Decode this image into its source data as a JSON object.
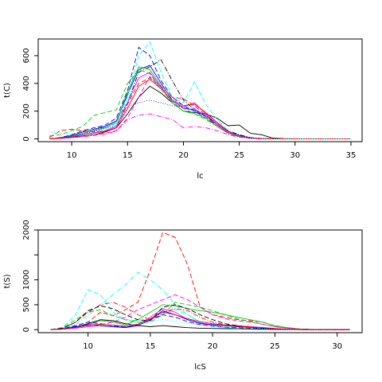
{
  "chart_data": [
    {
      "type": "line",
      "xlabel": "lc",
      "ylabel": "t(C)",
      "xlim": [
        7,
        36
      ],
      "ylim": [
        -20,
        720
      ],
      "xticks": [
        10,
        15,
        20,
        25,
        30,
        35
      ],
      "yticks": [
        0,
        200,
        400,
        600
      ],
      "x": [
        8,
        9,
        10,
        11,
        12,
        13,
        14,
        15,
        16,
        17,
        18,
        19,
        20,
        21,
        22,
        23,
        24,
        25,
        26,
        27,
        28,
        29,
        30,
        31,
        32,
        33,
        34,
        35
      ],
      "series": [
        {
          "color": "#000000",
          "dash": "solid",
          "values": [
            0,
            5,
            10,
            20,
            30,
            50,
            80,
            180,
            300,
            380,
            330,
            260,
            200,
            190,
            180,
            150,
            95,
            100,
            40,
            30,
            5,
            2,
            1,
            0,
            0,
            0,
            0,
            0
          ]
        },
        {
          "color": "#000000",
          "dash": "dashdot",
          "values": [
            0,
            8,
            20,
            40,
            60,
            90,
            130,
            260,
            480,
            520,
            570,
            420,
            280,
            210,
            160,
            110,
            60,
            30,
            10,
            3,
            1,
            0,
            0,
            0,
            0,
            0,
            0,
            0
          ]
        },
        {
          "color": "#0000ff",
          "dash": "dashed",
          "values": [
            0,
            10,
            30,
            60,
            80,
            100,
            150,
            350,
            660,
            600,
            420,
            300,
            240,
            200,
            150,
            100,
            50,
            20,
            5,
            1,
            0,
            0,
            0,
            0,
            0,
            0,
            0,
            0
          ]
        },
        {
          "color": "#0000ff",
          "dash": "solid",
          "values": [
            0,
            8,
            25,
            50,
            70,
            90,
            130,
            320,
            500,
            530,
            400,
            280,
            220,
            210,
            170,
            110,
            55,
            25,
            8,
            2,
            0,
            0,
            0,
            0,
            0,
            0,
            0,
            0
          ]
        },
        {
          "color": "#00ffff",
          "dash": "dashed",
          "values": [
            0,
            5,
            15,
            35,
            60,
            80,
            110,
            300,
            600,
            700,
            480,
            300,
            260,
            410,
            250,
            140,
            60,
            20,
            5,
            1,
            0,
            0,
            0,
            0,
            0,
            0,
            0,
            0
          ]
        },
        {
          "color": "#00cc00",
          "dash": "solid",
          "values": [
            0,
            6,
            20,
            40,
            60,
            80,
            120,
            340,
            520,
            500,
            380,
            260,
            200,
            180,
            150,
            90,
            40,
            15,
            4,
            1,
            0,
            0,
            0,
            0,
            0,
            0,
            0,
            0
          ]
        },
        {
          "color": "#00cc00",
          "dash": "dashed",
          "values": [
            20,
            30,
            60,
            90,
            170,
            190,
            210,
            400,
            500,
            470,
            360,
            260,
            220,
            180,
            140,
            90,
            40,
            15,
            4,
            1,
            0,
            0,
            0,
            0,
            0,
            0,
            0,
            0
          ]
        },
        {
          "color": "#ff0000",
          "dash": "dashed",
          "values": [
            10,
            60,
            70,
            60,
            50,
            60,
            90,
            250,
            400,
            440,
            380,
            300,
            290,
            240,
            170,
            100,
            45,
            18,
            5,
            1,
            0,
            0,
            0,
            0,
            0,
            0,
            0,
            0
          ]
        },
        {
          "color": "#ff00ff",
          "dash": "dashed",
          "values": [
            0,
            4,
            10,
            20,
            30,
            40,
            60,
            150,
            300,
            450,
            360,
            280,
            220,
            220,
            160,
            100,
            45,
            15,
            4,
            1,
            0,
            0,
            0,
            0,
            0,
            0,
            0,
            0
          ]
        },
        {
          "color": "#ff00ff",
          "dash": "dashdot",
          "values": [
            0,
            3,
            8,
            15,
            25,
            35,
            55,
            140,
            170,
            180,
            160,
            140,
            80,
            90,
            80,
            60,
            30,
            12,
            3,
            0,
            0,
            0,
            0,
            0,
            0,
            0,
            0,
            0
          ]
        },
        {
          "color": "#ff00ff",
          "dash": "solid",
          "values": [
            0,
            5,
            15,
            30,
            45,
            60,
            90,
            260,
            440,
            480,
            370,
            270,
            230,
            260,
            180,
            110,
            50,
            18,
            5,
            1,
            0,
            0,
            0,
            0,
            0,
            0,
            0,
            0
          ]
        },
        {
          "color": "#0000ff",
          "dash": "dotted",
          "values": [
            0,
            6,
            18,
            35,
            55,
            75,
            100,
            230,
            260,
            280,
            260,
            240,
            230,
            200,
            160,
            110,
            50,
            18,
            5,
            1,
            0,
            0,
            0,
            0,
            0,
            0,
            0,
            0
          ]
        },
        {
          "color": "#ff0000",
          "dash": "solid",
          "values": [
            0,
            5,
            14,
            28,
            42,
            55,
            80,
            220,
            380,
            430,
            360,
            280,
            240,
            250,
            190,
            120,
            55,
            20,
            5,
            1,
            0,
            0,
            0,
            0,
            0,
            0,
            0,
            0
          ]
        },
        {
          "color": "#00ffff",
          "dash": "dotted",
          "values": [
            50,
            40,
            30,
            30,
            40,
            60,
            100,
            280,
            420,
            460,
            360,
            280,
            240,
            230,
            170,
            110,
            50,
            18,
            5,
            1,
            0,
            0,
            0,
            0,
            0,
            0,
            0,
            0
          ]
        }
      ]
    },
    {
      "type": "line",
      "xlabel": "lcS",
      "ylabel": "t(S)",
      "xlim": [
        6,
        32
      ],
      "ylim": [
        -60,
        2000
      ],
      "xticks": [
        10,
        15,
        20,
        25,
        30
      ],
      "yticks": [
        0,
        500,
        1000,
        1500,
        2000
      ],
      "ytick_labels": [
        "0",
        "500",
        "1000",
        "",
        "2000"
      ],
      "x": [
        7,
        8,
        9,
        10,
        11,
        12,
        13,
        14,
        15,
        16,
        17,
        18,
        19,
        20,
        21,
        22,
        23,
        24,
        25,
        26,
        27,
        28,
        29,
        30,
        31
      ],
      "series": [
        {
          "color": "#ff0000",
          "dash": "dashed",
          "values": [
            0,
            20,
            80,
            150,
            350,
            280,
            400,
            550,
            1200,
            1950,
            1850,
            1300,
            450,
            300,
            250,
            200,
            180,
            150,
            80,
            40,
            15,
            5,
            2,
            1,
            0
          ]
        },
        {
          "color": "#00ffff",
          "dash": "dashed",
          "values": [
            0,
            50,
            300,
            800,
            700,
            350,
            200,
            180,
            200,
            320,
            400,
            300,
            150,
            80,
            40,
            20,
            10,
            5,
            2,
            1,
            0,
            0,
            0,
            0,
            0
          ]
        },
        {
          "color": "#00ffff",
          "dash": "dashdot",
          "values": [
            0,
            20,
            100,
            300,
            500,
            700,
            900,
            1150,
            1000,
            800,
            500,
            300,
            150,
            80,
            40,
            20,
            10,
            5,
            2,
            1,
            0,
            0,
            0,
            0,
            0
          ]
        },
        {
          "color": "#ff0000",
          "dash": "dashdot",
          "values": [
            0,
            30,
            150,
            350,
            500,
            550,
            450,
            300,
            200,
            350,
            420,
            380,
            250,
            150,
            100,
            80,
            60,
            40,
            20,
            10,
            5,
            2,
            1,
            0,
            0
          ]
        },
        {
          "color": "#00cc00",
          "dash": "solid",
          "values": [
            0,
            10,
            40,
            100,
            180,
            150,
            100,
            200,
            350,
            500,
            480,
            420,
            380,
            350,
            300,
            250,
            200,
            150,
            80,
            40,
            15,
            5,
            2,
            1,
            0
          ]
        },
        {
          "color": "#00cc00",
          "dash": "dashed",
          "values": [
            0,
            40,
            200,
            350,
            400,
            280,
            200,
            150,
            150,
            300,
            550,
            500,
            450,
            380,
            300,
            220,
            160,
            110,
            60,
            30,
            10,
            3,
            1,
            0,
            0
          ]
        },
        {
          "color": "#ff00ff",
          "dash": "dashed",
          "values": [
            0,
            20,
            60,
            80,
            100,
            150,
            250,
            400,
            500,
            600,
            700,
            600,
            450,
            300,
            220,
            180,
            150,
            110,
            60,
            30,
            10,
            3,
            1,
            0,
            0
          ]
        },
        {
          "color": "#ff00ff",
          "dash": "solid",
          "values": [
            0,
            10,
            30,
            60,
            80,
            60,
            50,
            100,
            250,
            420,
            350,
            200,
            120,
            90,
            80,
            70,
            60,
            45,
            25,
            10,
            4,
            1,
            0,
            0,
            0
          ]
        },
        {
          "color": "#000000",
          "dash": "solid",
          "values": [
            0,
            10,
            50,
            120,
            200,
            180,
            120,
            80,
            60,
            80,
            60,
            40,
            30,
            25,
            20,
            18,
            15,
            10,
            6,
            3,
            1,
            0,
            0,
            0,
            0
          ]
        },
        {
          "color": "#000000",
          "dash": "dashed",
          "values": [
            0,
            30,
            150,
            380,
            480,
            420,
            300,
            200,
            180,
            450,
            500,
            420,
            300,
            200,
            120,
            80,
            50,
            30,
            15,
            6,
            2,
            1,
            0,
            0,
            0
          ]
        },
        {
          "color": "#0000ff",
          "dash": "dashed",
          "values": [
            0,
            20,
            80,
            150,
            120,
            80,
            50,
            80,
            200,
            300,
            250,
            160,
            100,
            70,
            50,
            40,
            30,
            20,
            10,
            5,
            2,
            1,
            0,
            0,
            0
          ]
        },
        {
          "color": "#0000ff",
          "dash": "solid",
          "values": [
            0,
            15,
            60,
            100,
            80,
            60,
            40,
            80,
            200,
            380,
            300,
            200,
            130,
            100,
            80,
            60,
            45,
            30,
            15,
            6,
            2,
            1,
            0,
            0,
            0
          ]
        },
        {
          "color": "#00ffff",
          "dash": "dotted",
          "values": [
            0,
            10,
            40,
            80,
            100,
            90,
            80,
            120,
            160,
            200,
            170,
            130,
            90,
            70,
            55,
            45,
            35,
            25,
            12,
            5,
            2,
            1,
            0,
            0,
            0
          ]
        },
        {
          "color": "#ff0000",
          "dash": "solid",
          "values": [
            0,
            10,
            40,
            90,
            110,
            90,
            70,
            110,
            220,
            350,
            300,
            220,
            160,
            120,
            90,
            70,
            55,
            40,
            20,
            8,
            3,
            1,
            0,
            0,
            0
          ]
        }
      ]
    }
  ]
}
